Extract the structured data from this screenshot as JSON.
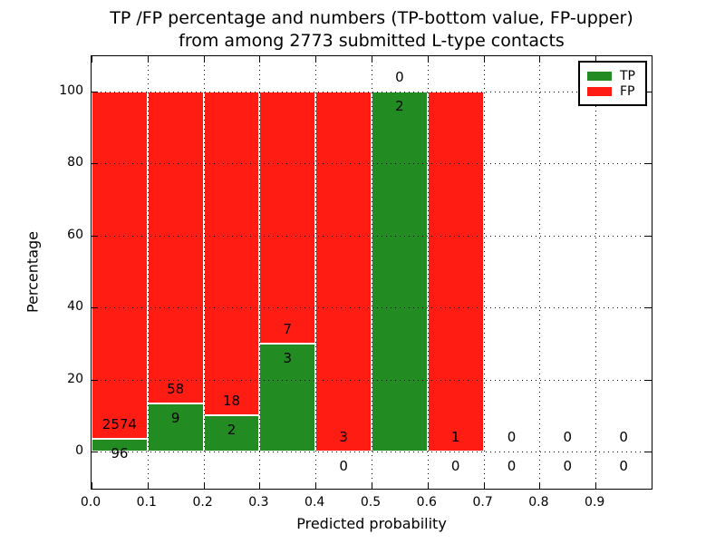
{
  "chart_data": {
    "type": "bar",
    "stacked": true,
    "title": "TP /FP percentage and numbers (TP-bottom value, FP-upper) from among 2773 submitted L-type contacts",
    "title_line1": "TP /FP percentage and numbers (TP-bottom value, FP-upper)",
    "title_line2": "from among 2773 submitted L-type contacts",
    "xlabel": "Predicted probability",
    "ylabel": "Percentage",
    "xlim": [
      0.0,
      1.0
    ],
    "ylim": [
      -10.3,
      109.8
    ],
    "grid": true,
    "x_tick_labels": [
      "0.0",
      "0.1",
      "0.2",
      "0.3",
      "0.4",
      "0.5",
      "0.6",
      "0.7",
      "0.8",
      "0.9"
    ],
    "y_ticks": [
      0,
      20,
      40,
      60,
      80,
      100
    ],
    "bins": [
      {
        "range": [
          0.0,
          0.1
        ],
        "tp_count": "96",
        "fp_count": "2574",
        "tp_pct": 3.6,
        "fp_pct": 96.4
      },
      {
        "range": [
          0.1,
          0.2
        ],
        "tp_count": "9",
        "fp_count": "58",
        "tp_pct": 13.4,
        "fp_pct": 86.6
      },
      {
        "range": [
          0.2,
          0.3
        ],
        "tp_count": "2",
        "fp_count": "18",
        "tp_pct": 10.0,
        "fp_pct": 90.0
      },
      {
        "range": [
          0.3,
          0.4
        ],
        "tp_count": "3",
        "fp_count": "7",
        "tp_pct": 30.0,
        "fp_pct": 70.0
      },
      {
        "range": [
          0.4,
          0.5
        ],
        "tp_count": "0",
        "fp_count": "3",
        "tp_pct": 0.0,
        "fp_pct": 100.0
      },
      {
        "range": [
          0.5,
          0.6
        ],
        "tp_count": "2",
        "fp_count": "0",
        "tp_pct": 100.0,
        "fp_pct": 0.0
      },
      {
        "range": [
          0.6,
          0.7
        ],
        "tp_count": "0",
        "fp_count": "1",
        "tp_pct": 0.0,
        "fp_pct": 100.0
      },
      {
        "range": [
          0.7,
          0.8
        ],
        "tp_count": "0",
        "fp_count": "0",
        "tp_pct": 0.0,
        "fp_pct": 0.0
      },
      {
        "range": [
          0.8,
          0.9
        ],
        "tp_count": "0",
        "fp_count": "0",
        "tp_pct": 0.0,
        "fp_pct": 0.0
      },
      {
        "range": [
          0.9,
          1.0
        ],
        "tp_count": "0",
        "fp_count": "0",
        "tp_pct": 0.0,
        "fp_pct": 0.0
      }
    ],
    "legend": [
      {
        "label": "TP",
        "color": "#228b22"
      },
      {
        "label": "FP",
        "color": "#ff1d13"
      }
    ],
    "colors": {
      "tp": "#228b22",
      "fp": "#ff1d13",
      "grid": "#000000",
      "text": "#000000"
    }
  }
}
